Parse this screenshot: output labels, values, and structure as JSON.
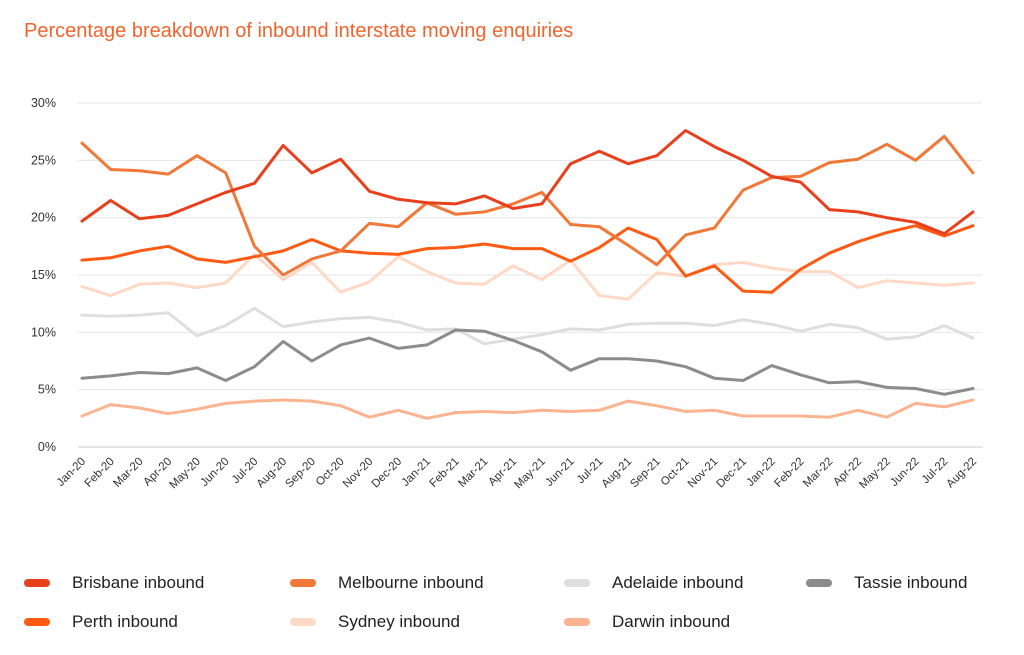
{
  "chart_data": {
    "type": "line",
    "title": "Percentage breakdown of inbound interstate moving enquiries",
    "xlabel": "",
    "ylabel": "",
    "ylim": [
      0,
      30
    ],
    "yticks": [
      "0%",
      "5%",
      "10%",
      "15%",
      "20%",
      "25%",
      "30%"
    ],
    "categories": [
      "Jan-20",
      "Feb-20",
      "Mar-20",
      "Apr-20",
      "May-20",
      "Jun-20",
      "Jul-20",
      "Aug-20",
      "Sep-20",
      "Oct-20",
      "Nov-20",
      "Dec-20",
      "Jan-21",
      "Feb-21",
      "Mar-21",
      "Apr-21",
      "May-21",
      "Jun-21",
      "Jul-21",
      "Aug-21",
      "Sep-21",
      "Oct-21",
      "Nov-21",
      "Dec-21",
      "Jan-22",
      "Feb-22",
      "Mar-22",
      "Apr-22",
      "May-22",
      "Jun-22",
      "Jul-22",
      "Aug-22"
    ],
    "legend_position": "bottom",
    "series": [
      {
        "name": "Brisbane inbound",
        "color": "#e8401c",
        "values": [
          19.7,
          21.5,
          19.9,
          20.2,
          21.2,
          22.2,
          23.0,
          26.3,
          23.9,
          25.1,
          22.3,
          21.6,
          21.3,
          21.2,
          21.9,
          20.8,
          21.2,
          24.7,
          25.8,
          24.7,
          25.4,
          27.6,
          26.2,
          25.0,
          23.6,
          23.1,
          20.7,
          20.5,
          20.0,
          19.6,
          18.6,
          20.5
        ]
      },
      {
        "name": "Melbourne inbound",
        "color": "#f07838",
        "values": [
          26.5,
          24.2,
          24.1,
          23.8,
          25.4,
          23.9,
          17.5,
          15.0,
          16.4,
          17.1,
          19.5,
          19.2,
          21.3,
          20.3,
          20.5,
          21.2,
          22.2,
          19.4,
          19.2,
          17.6,
          15.9,
          18.5,
          19.1,
          22.4,
          23.5,
          23.6,
          24.8,
          25.1,
          26.4,
          25.0,
          27.1,
          23.9
        ]
      },
      {
        "name": "Adelaide inbound",
        "color": "#dedede",
        "values": [
          11.5,
          11.4,
          11.5,
          11.7,
          9.7,
          10.6,
          12.1,
          10.5,
          10.9,
          11.2,
          11.3,
          10.9,
          10.2,
          10.3,
          9.0,
          9.4,
          9.8,
          10.3,
          10.2,
          10.7,
          10.8,
          10.8,
          10.6,
          11.1,
          10.7,
          10.1,
          10.7,
          10.4,
          9.4,
          9.6,
          10.6,
          9.5
        ]
      },
      {
        "name": "Tassie inbound",
        "color": "#8c8c8c",
        "values": [
          6.0,
          6.2,
          6.5,
          6.4,
          6.9,
          5.8,
          7.0,
          9.2,
          7.5,
          8.9,
          9.5,
          8.6,
          8.9,
          10.2,
          10.1,
          9.3,
          8.3,
          6.7,
          7.7,
          7.7,
          7.5,
          7.0,
          6.0,
          5.8,
          7.1,
          6.3,
          5.6,
          5.7,
          5.2,
          5.1,
          4.6,
          5.1
        ]
      },
      {
        "name": "Perth inbound",
        "color": "#ff5a14",
        "values": [
          16.3,
          16.5,
          17.1,
          17.5,
          16.4,
          16.1,
          16.6,
          17.1,
          18.1,
          17.1,
          16.9,
          16.8,
          17.3,
          17.4,
          17.7,
          17.3,
          17.3,
          16.2,
          17.4,
          19.1,
          18.1,
          14.9,
          15.8,
          13.6,
          13.5,
          15.5,
          16.9,
          17.9,
          18.7,
          19.3,
          18.4,
          19.3
        ]
      },
      {
        "name": "Sydney inbound",
        "color": "#ffd9c6",
        "values": [
          14.0,
          13.2,
          14.2,
          14.3,
          13.9,
          14.3,
          16.8,
          14.6,
          16.1,
          13.5,
          14.4,
          16.6,
          15.3,
          14.3,
          14.2,
          15.8,
          14.6,
          16.3,
          13.2,
          12.9,
          15.2,
          14.9,
          15.9,
          16.1,
          15.6,
          15.3,
          15.3,
          13.9,
          14.5,
          14.3,
          14.1,
          14.3
        ]
      },
      {
        "name": "Darwin inbound",
        "color": "#fbb48f",
        "values": [
          2.7,
          3.7,
          3.4,
          2.9,
          3.3,
          3.8,
          4.0,
          4.1,
          4.0,
          3.6,
          2.6,
          3.2,
          2.5,
          3.0,
          3.1,
          3.0,
          3.2,
          3.1,
          3.2,
          4.0,
          3.6,
          3.1,
          3.2,
          2.7,
          2.7,
          2.7,
          2.6,
          3.2,
          2.6,
          3.8,
          3.5,
          4.1
        ]
      }
    ]
  },
  "legend": [
    {
      "label": "Brisbane inbound",
      "color": "#e8401c"
    },
    {
      "label": "Melbourne inbound",
      "color": "#f07838"
    },
    {
      "label": "Adelaide inbound",
      "color": "#dedede"
    },
    {
      "label": "Tassie inbound",
      "color": "#8c8c8c"
    },
    {
      "label": "Perth inbound",
      "color": "#ff5a14"
    },
    {
      "label": "Sydney inbound",
      "color": "#ffd9c6"
    },
    {
      "label": "Darwin inbound",
      "color": "#fbb48f"
    }
  ]
}
